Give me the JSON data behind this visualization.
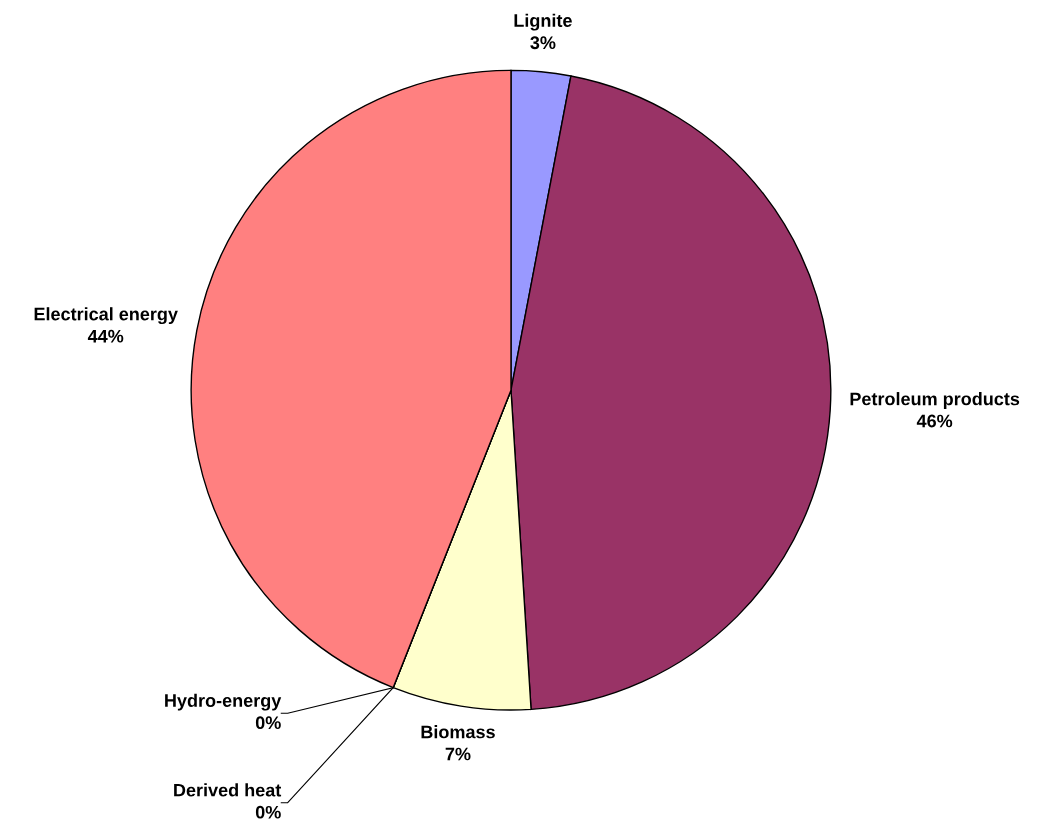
{
  "chart_data": {
    "type": "pie",
    "categories": [
      "Lignite",
      "Petroleum products",
      "Biomass",
      "Hydro-energy",
      "Derived heat",
      "Electrical energy"
    ],
    "values": [
      3,
      46,
      7,
      0,
      0,
      44
    ],
    "value_labels": [
      "3%",
      "46%",
      "7%",
      "0%",
      "0%",
      "44%"
    ],
    "colors": [
      "#9999ff",
      "#993366",
      "#ffffcc",
      "#ccffff",
      "#660066",
      "#ff8080"
    ],
    "legend": false
  }
}
